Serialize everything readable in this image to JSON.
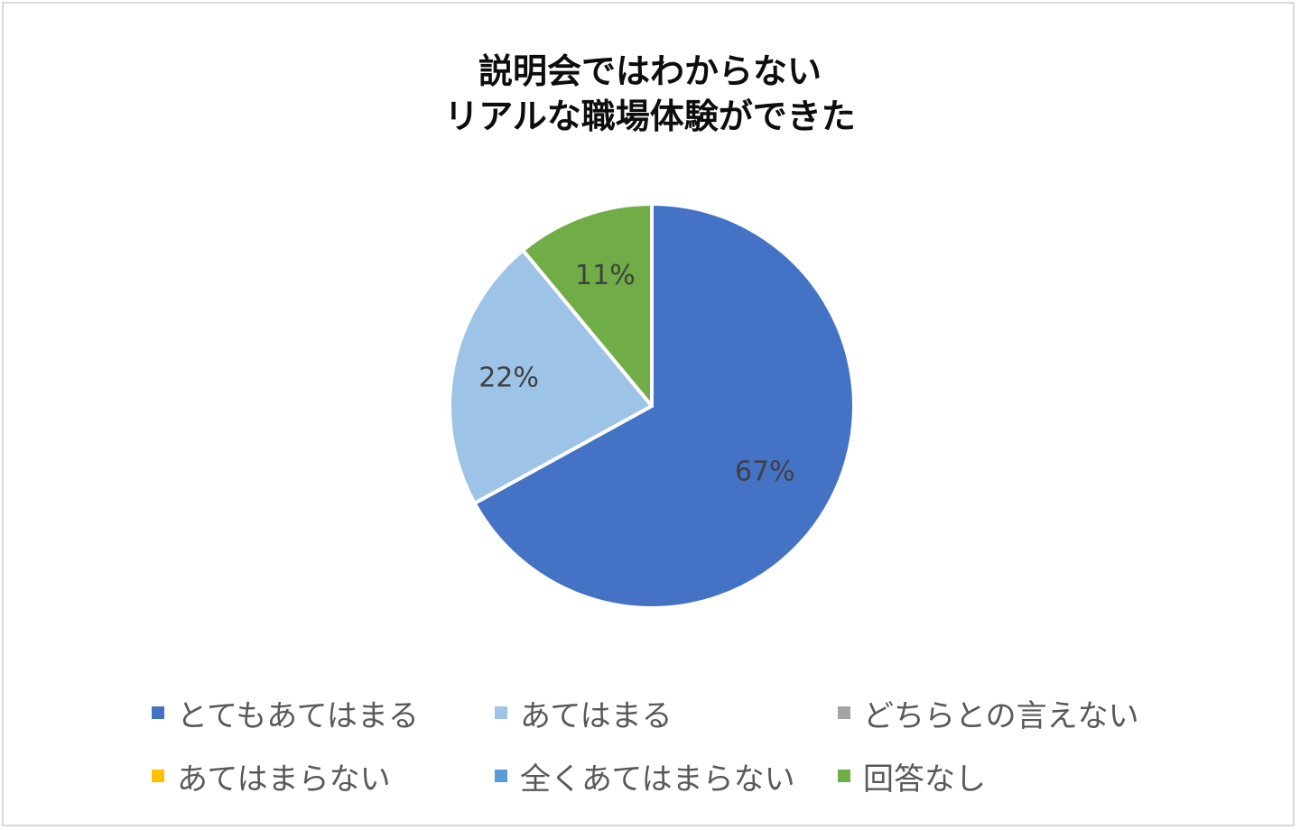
{
  "chart_data": {
    "type": "pie",
    "title": [
      "説明会ではわからない",
      "リアルな職場体験ができた"
    ],
    "legend_position": "bottom",
    "slices": [
      {
        "name": "とてもあてはまる",
        "value": 67,
        "label": "67%",
        "color": "#4472c4"
      },
      {
        "name": "あてはまる",
        "value": 22,
        "label": "22%",
        "color": "#9dc3e6"
      },
      {
        "name": "どちらとの言えない",
        "value": 0,
        "label": "",
        "color": "#a5a5a5"
      },
      {
        "name": "あてはまらない",
        "value": 0,
        "label": "",
        "color": "#ffc000"
      },
      {
        "name": "全くあてはまらない",
        "value": 0,
        "label": "",
        "color": "#5b9bd5"
      },
      {
        "name": "回答なし",
        "value": 11,
        "label": "11%",
        "color": "#70ad47"
      }
    ]
  }
}
